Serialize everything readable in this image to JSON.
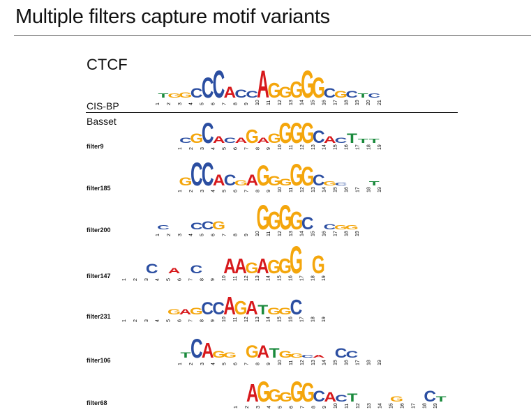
{
  "title": "Multiple filters capture motif variants",
  "reference": {
    "name": "CTCF",
    "source": "CIS-BP",
    "positions": [
      "1",
      "2",
      "3",
      "4",
      "5",
      "6",
      "7",
      "8",
      "9",
      "10",
      "11",
      "12",
      "13",
      "14",
      "15",
      "16",
      "17",
      "18",
      "19",
      "20",
      "21"
    ],
    "letters": [
      "T",
      "G",
      "G",
      "C",
      "C",
      "C",
      "A",
      "C",
      "C",
      "A",
      "G",
      "G",
      "G",
      "G",
      "G",
      "C",
      "G",
      "C",
      "T",
      "C",
      ""
    ]
  },
  "section_label": "Basset",
  "colors": {
    "A": "#d7191c",
    "C": "#2b4ea1",
    "G": "#f4a60c",
    "T": "#1a8a3c"
  },
  "filters": [
    {
      "name": "filter9",
      "positions": [
        "1",
        "2",
        "3",
        "4",
        "5",
        "6",
        "7",
        "8",
        "9",
        "10",
        "11",
        "12",
        "13",
        "14",
        "15",
        "16",
        "17",
        "18",
        "19"
      ],
      "letters": [
        "C",
        "G",
        "C",
        "A",
        "C",
        "A",
        "G",
        "A",
        "G",
        "G",
        "G",
        "G",
        "C",
        "A",
        "C",
        "T",
        "T",
        "T",
        ""
      ]
    },
    {
      "name": "filter185",
      "positions": [
        "1",
        "2",
        "3",
        "4",
        "5",
        "6",
        "7",
        "8",
        "9",
        "10",
        "11",
        "12",
        "13",
        "14",
        "15",
        "16",
        "17",
        "18",
        "19"
      ],
      "letters": [
        "G",
        "C",
        "C",
        "A",
        "C",
        "G",
        "A",
        "G",
        "G",
        "G",
        "G",
        "G",
        "C",
        "G",
        "C",
        "",
        "",
        "T",
        ""
      ]
    },
    {
      "name": "filter200",
      "positions": [
        "1",
        "2",
        "3",
        "4",
        "5",
        "6",
        "7",
        "8",
        "9",
        "10",
        "11",
        "12",
        "13",
        "14",
        "15",
        "16",
        "17",
        "18",
        "19"
      ],
      "letters": [
        "C",
        "",
        "",
        "C",
        "C",
        "G",
        "",
        "",
        "",
        "G",
        "G",
        "G",
        "G",
        "C",
        "",
        "C",
        "G",
        "G",
        ""
      ]
    },
    {
      "name": "filter147",
      "positions": [
        "1",
        "2",
        "3",
        "4",
        "5",
        "6",
        "7",
        "8",
        "9",
        "10",
        "11",
        "12",
        "13",
        "14",
        "15",
        "16",
        "17",
        "18",
        "19"
      ],
      "letters": [
        "",
        "",
        "C",
        "",
        "A",
        "",
        "C",
        "",
        "",
        "A",
        "A",
        "G",
        "A",
        "G",
        "G",
        "G",
        "",
        "G",
        ""
      ]
    },
    {
      "name": "filter231",
      "positions": [
        "1",
        "2",
        "3",
        "4",
        "5",
        "6",
        "7",
        "8",
        "9",
        "10",
        "11",
        "12",
        "13",
        "14",
        "15",
        "16",
        "17",
        "18",
        "19"
      ],
      "letters": [
        "",
        "",
        "",
        "",
        "G",
        "A",
        "G",
        "C",
        "C",
        "A",
        "G",
        "A",
        "T",
        "G",
        "G",
        "C",
        "",
        "",
        ""
      ]
    },
    {
      "name": "filter106",
      "positions": [
        "1",
        "2",
        "3",
        "4",
        "5",
        "6",
        "7",
        "8",
        "9",
        "10",
        "11",
        "12",
        "13",
        "14",
        "15",
        "16",
        "17",
        "18",
        "19"
      ],
      "letters": [
        "T",
        "C",
        "A",
        "G",
        "G",
        "",
        "G",
        "A",
        "T",
        "G",
        "G",
        "C",
        "A",
        "",
        "C",
        "C",
        "",
        "",
        ""
      ]
    },
    {
      "name": "filter68",
      "positions": [
        "1",
        "2",
        "3",
        "4",
        "5",
        "6",
        "7",
        "8",
        "9",
        "10",
        "11",
        "12",
        "13",
        "14",
        "15",
        "16",
        "17",
        "18",
        "19"
      ],
      "letters": [
        "",
        "A",
        "G",
        "G",
        "G",
        "G",
        "G",
        "C",
        "A",
        "C",
        "T",
        "",
        "",
        "",
        "G",
        "",
        "",
        "C",
        "T"
      ]
    }
  ]
}
